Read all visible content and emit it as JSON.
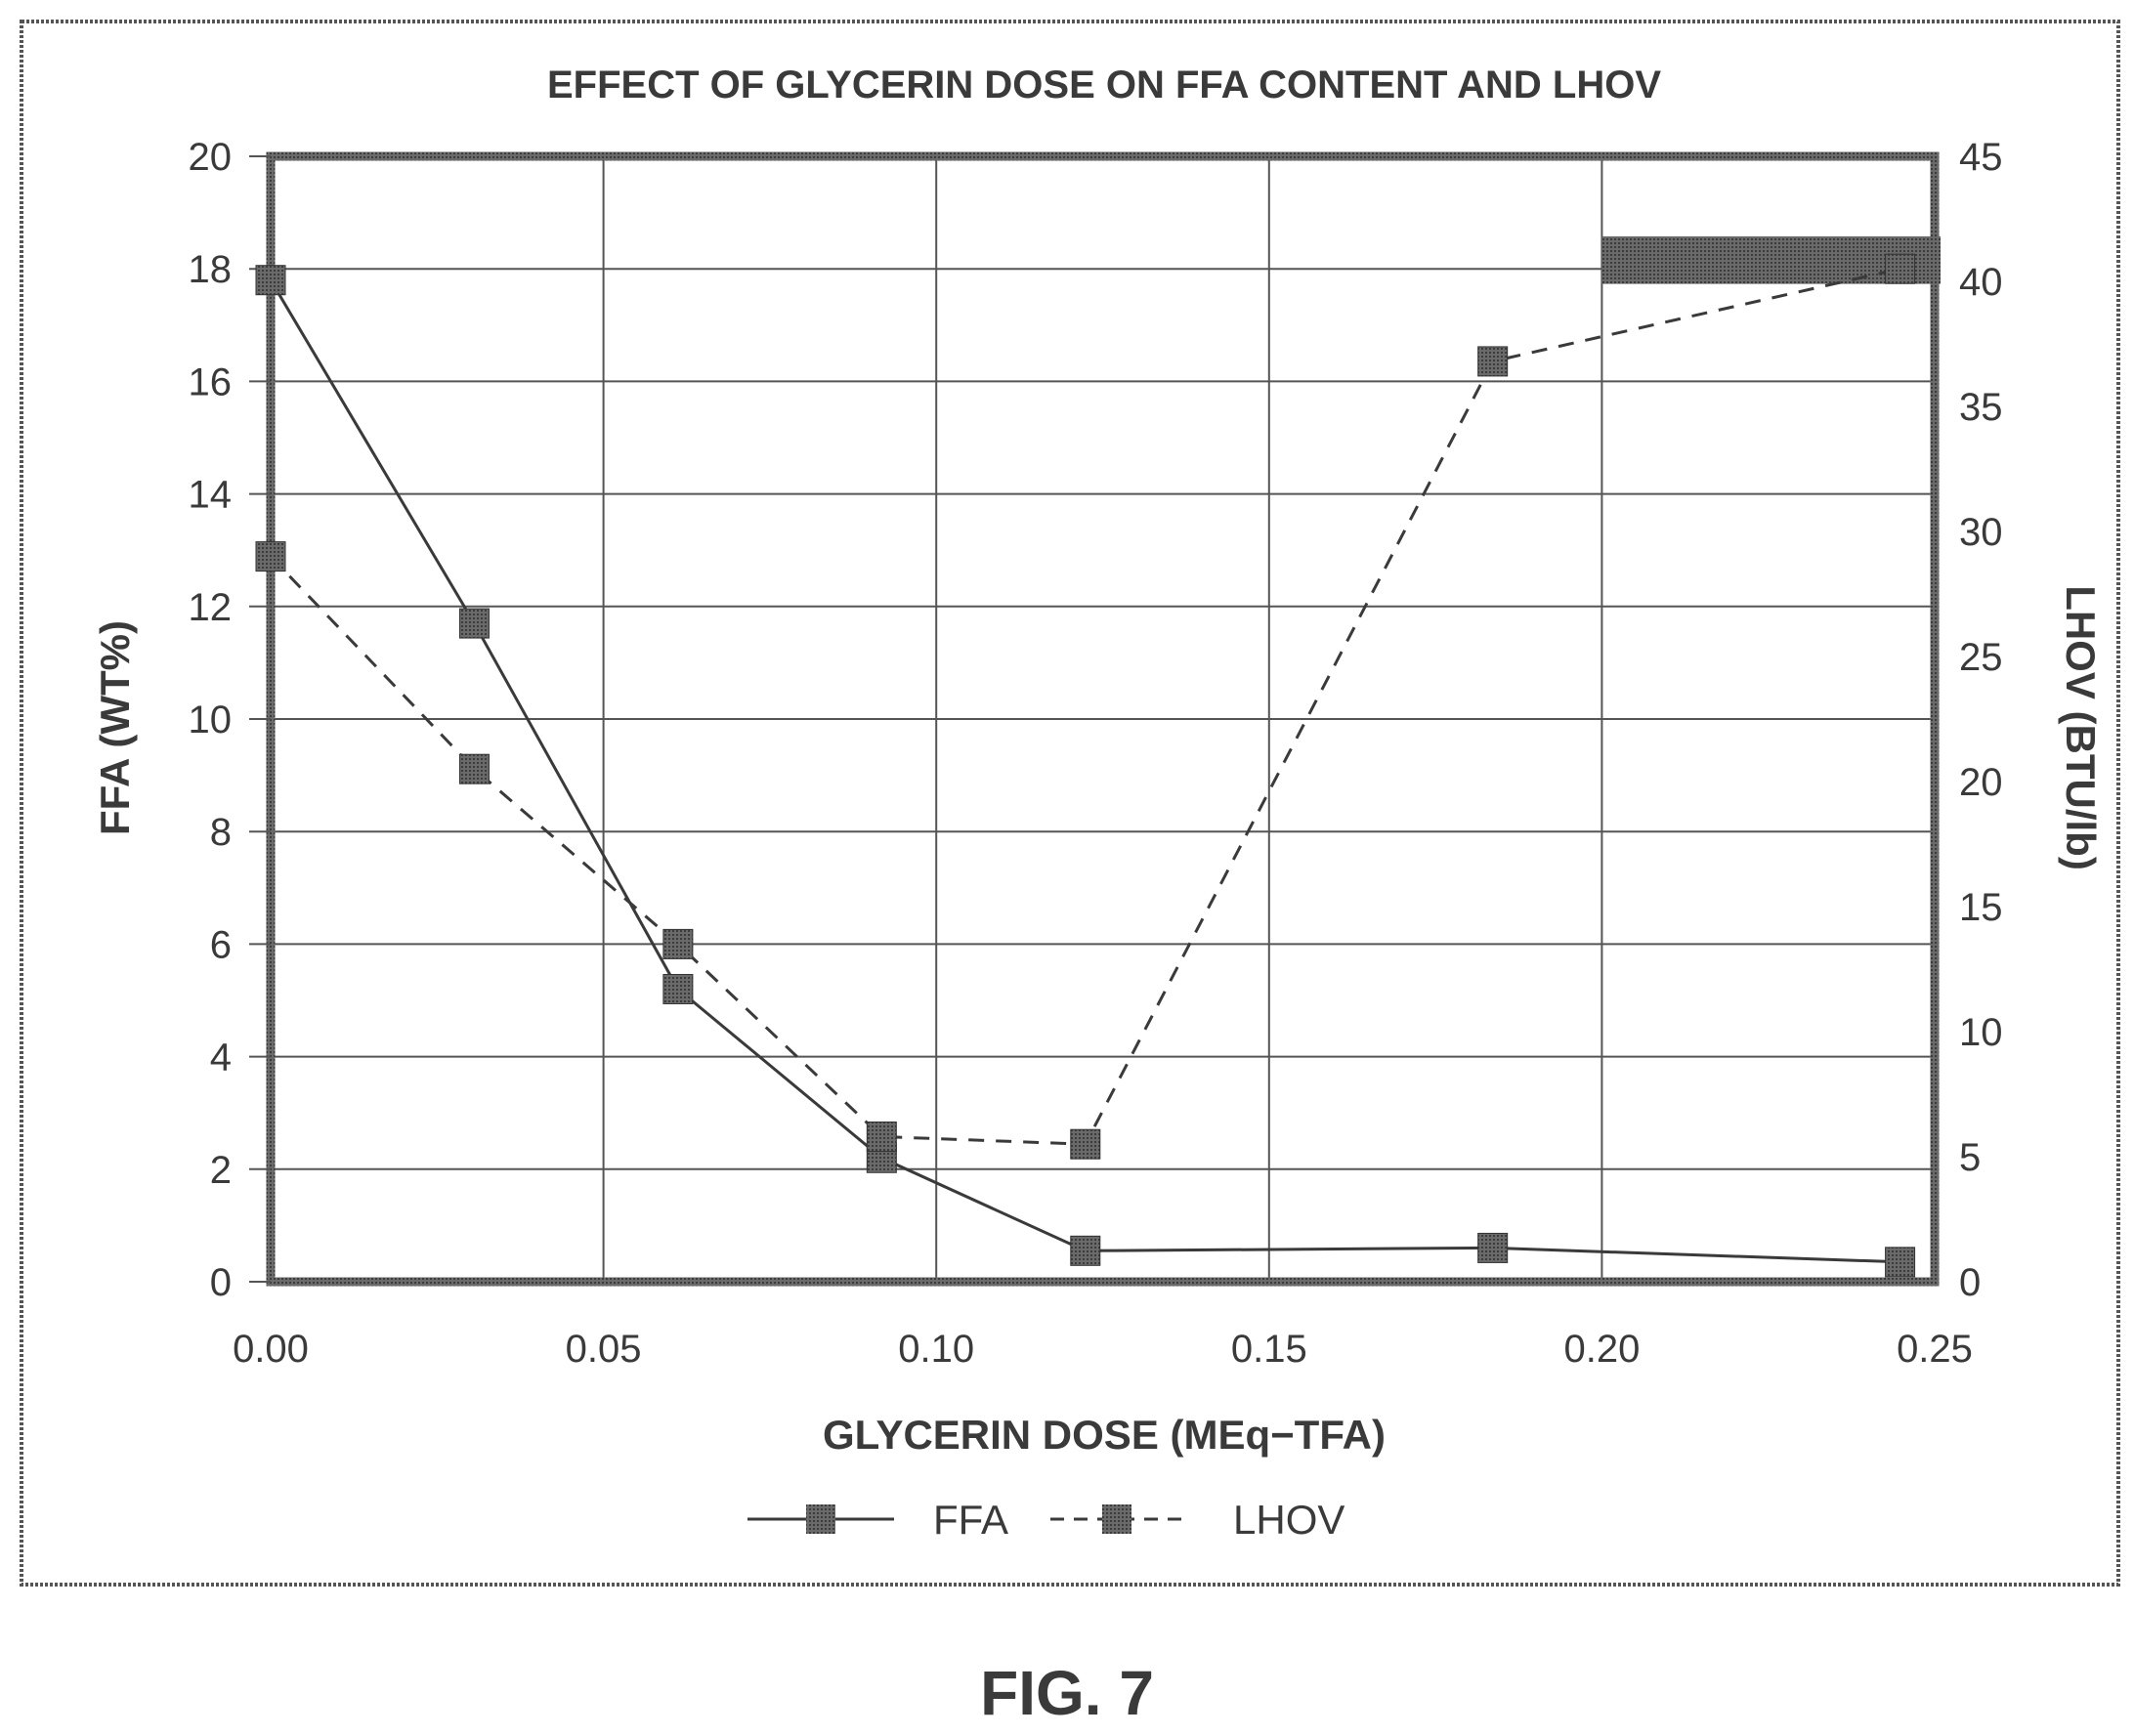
{
  "figure_label": "FIG. 7",
  "chart_data": {
    "type": "line",
    "title": "EFFECT OF GLYCERIN DOSE ON FFA CONTENT AND LHOV",
    "xlabel": "GLYCERIN DOSE (MEq−TFA)",
    "ylabel": "FFA (WT%)",
    "y2label": "LHOV (BTU/lb)",
    "xlim": [
      0,
      0.25
    ],
    "ylim": [
      0,
      20
    ],
    "y2lim": [
      0,
      45
    ],
    "x_ticks": [
      "0.00",
      "0.05",
      "0.10",
      "0.15",
      "0.20",
      "0.25"
    ],
    "y_ticks": [
      "0",
      "2",
      "4",
      "6",
      "8",
      "10",
      "12",
      "14",
      "16",
      "18",
      "20"
    ],
    "y2_ticks": [
      "0",
      "5",
      "10",
      "15",
      "20",
      "25",
      "30",
      "35",
      "40",
      "45"
    ],
    "grid": true,
    "legend_position": "bottom",
    "series": [
      {
        "name": "FFA",
        "axis": "left",
        "line_style": "solid",
        "marker": "square",
        "x": [
          0.0,
          0.0306,
          0.0612,
          0.0918,
          0.1224,
          0.1836,
          0.2448
        ],
        "values": [
          17.8,
          11.7,
          5.2,
          2.2,
          0.55,
          0.6,
          0.35
        ]
      },
      {
        "name": "LHOV",
        "axis": "right",
        "line_style": "dashed",
        "marker": "square",
        "x": [
          0.0,
          0.0306,
          0.0612,
          0.0918,
          0.1224,
          0.1836,
          0.2448
        ],
        "values": [
          29.0,
          20.5,
          13.5,
          5.8,
          5.5,
          36.8,
          40.5
        ]
      }
    ]
  },
  "colors": {
    "line": "#3a3a3a",
    "marker": "#555555",
    "frame": "#444444",
    "grid": "#555555"
  }
}
